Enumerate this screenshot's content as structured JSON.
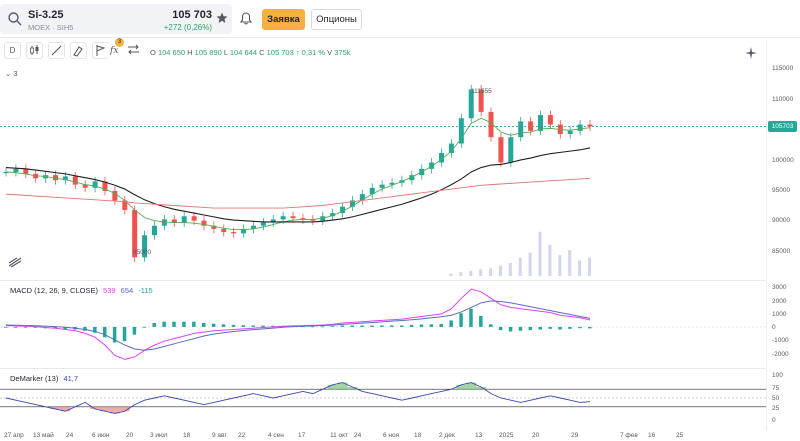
{
  "header": {
    "ticker": "Si-3.25",
    "exchange": "MOEX · SIH5",
    "price": "105 703",
    "change": "+272 (0,26%)",
    "order_label": "Заявка",
    "options_label": "Опционы",
    "icons": [
      "search-icon",
      "star-icon",
      "bell-icon"
    ]
  },
  "toolbar": {
    "period_label": "D",
    "indicator_badge": "3",
    "icons": [
      "candles-icon",
      "line-icon",
      "brush-icon",
      "fx-icon",
      "compare-icon"
    ]
  },
  "ohlc": {
    "o_label": "O",
    "o_value": "104 650",
    "h_label": "H",
    "h_value": "105 890",
    "l_label": "L",
    "l_value": "104 644",
    "c_label": "C",
    "c_value": "105 703",
    "change": "↑ 0,31 %",
    "vol_label": "V",
    "vol_value": "375k"
  },
  "collapse": {
    "label": "⌄ 3"
  },
  "price_axis": {
    "ticks": [
      "115000",
      "110000",
      "100000",
      "95000",
      "90000",
      "85000"
    ],
    "current": "105703",
    "high_label": "111555",
    "low_label": "85000"
  },
  "macd": {
    "label": "MACD (12, 26, 9, CLOSE)",
    "v1": "539",
    "v2": "654",
    "v3": "-115",
    "ticks": [
      "3000",
      "2000",
      "1000",
      "0",
      "-1000",
      "-2000"
    ]
  },
  "demarker": {
    "label": "DeMarker (13)",
    "value": "41,7",
    "ticks": [
      "100",
      "75",
      "50",
      "25",
      "0"
    ]
  },
  "time_axis": [
    "27 апр",
    "13 май",
    "24",
    "6 июн",
    "20",
    "3 июл",
    "18",
    "9 авг",
    "22",
    "4 сен",
    "17",
    "11 окт",
    "24",
    "6 ноя",
    "18",
    "2 дек",
    "13",
    "2025",
    "20",
    "29",
    "7 фев",
    "16",
    "25"
  ],
  "colors": {
    "up": "#26a69a",
    "down": "#ef5350",
    "sma_fast": "#4caf50",
    "sma_mid": "#1f1f1f",
    "sma_slow": "#e57373",
    "macd": "#e040fb",
    "signal": "#5c6bc0",
    "demarker": "#3949ab"
  },
  "chart_data": [
    {
      "type": "candlestick",
      "series": [
        {
          "name": "Si-3.25",
          "values": [
            98500,
            99000,
            98200,
            97500,
            98000,
            97200,
            97800,
            96500,
            96000,
            97000,
            95500,
            94000,
            92500,
            85000,
            88500,
            90000,
            91000,
            90500,
            91500,
            90800,
            90000,
            89500,
            89000,
            88800,
            89500,
            90000,
            90500,
            91000,
            91500,
            91200,
            91000,
            90800,
            91500,
            92000,
            93000,
            94000,
            95000,
            96000,
            96500,
            96800,
            97200,
            98000,
            99000,
            100000,
            101500,
            103000,
            107000,
            111555,
            108000,
            104000,
            100000,
            104000,
            106500,
            105000,
            107500,
            106000,
            104500,
            105000,
            106000,
            105703
          ]
        }
      ],
      "sma": [
        {
          "name": "SMA fast",
          "values": [
            98500,
            98400,
            98200,
            97900,
            97800,
            97500,
            97300,
            96900,
            96500,
            96300,
            95800,
            95100,
            94000,
            92500,
            91300,
            90800,
            90600,
            90500,
            90500,
            90400,
            90200,
            89900,
            89600,
            89400,
            89400,
            89500,
            89800,
            90200,
            90600,
            90900,
            91000,
            91000,
            91200,
            91600,
            92300,
            93100,
            94100,
            95000,
            95800,
            96400,
            97000,
            97700,
            98500,
            99400,
            100500,
            101800,
            103800,
            106200,
            107000,
            106300,
            104800,
            104300,
            104700,
            104800,
            105300,
            105400,
            105200,
            105100,
            105300,
            105500
          ]
        },
        {
          "name": "SMA mid",
          "values": [
            99200,
            99100,
            99000,
            98800,
            98600,
            98400,
            98200,
            97900,
            97600,
            97300,
            96900,
            96400,
            95800,
            94900,
            94100,
            93500,
            93000,
            92600,
            92300,
            92000,
            91700,
            91400,
            91100,
            90900,
            90800,
            90700,
            90600,
            90600,
            90600,
            90600,
            90600,
            90600,
            90700,
            90900,
            91100,
            91400,
            91800,
            92200,
            92600,
            93000,
            93400,
            93900,
            94400,
            95000,
            95700,
            96500,
            97400,
            98500,
            99200,
            99600,
            99700,
            100000,
            100400,
            100700,
            101100,
            101400,
            101600,
            101800,
            102000,
            102300
          ]
        },
        {
          "name": "SMA slow",
          "values": [
            95000,
            94900,
            94800,
            94700,
            94600,
            94500,
            94400,
            94300,
            94200,
            94100,
            94000,
            93900,
            93800,
            93600,
            93500,
            93400,
            93300,
            93200,
            93100,
            93000,
            92900,
            92800,
            92800,
            92800,
            92800,
            92800,
            92800,
            92800,
            92800,
            92900,
            93000,
            93100,
            93200,
            93400,
            93600,
            93800,
            94000,
            94200,
            94400,
            94600,
            94800,
            95000,
            95200,
            95400,
            95600,
            95800,
            96000,
            96200,
            96400,
            96500,
            96600,
            96700,
            96800,
            96900,
            97000,
            97100,
            97200,
            97300,
            97400,
            97500
          ]
        }
      ],
      "ylim": [
        83000,
        117000
      ]
    },
    {
      "type": "line",
      "title": "MACD (12, 26, 9, CLOSE)",
      "series": [
        {
          "name": "MACD",
          "values": [
            100,
            80,
            50,
            20,
            -50,
            -100,
            -200,
            -300,
            -500,
            -800,
            -1400,
            -2200,
            -2500,
            -2300,
            -1800,
            -1400,
            -1100,
            -900,
            -700,
            -500,
            -400,
            -300,
            -250,
            -200,
            -150,
            -100,
            -50,
            0,
            50,
            80,
            100,
            120,
            150,
            200,
            300,
            350,
            400,
            450,
            500,
            550,
            600,
            700,
            800,
            900,
            1000,
            1400,
            2200,
            2900,
            2700,
            2200,
            1700,
            1500,
            1400,
            1300,
            1200,
            1100,
            900,
            800,
            700,
            539
          ]
        },
        {
          "name": "Signal",
          "values": [
            150,
            130,
            110,
            90,
            60,
            20,
            -30,
            -100,
            -200,
            -350,
            -600,
            -1000,
            -1400,
            -1700,
            -1800,
            -1700,
            -1500,
            -1300,
            -1100,
            -900,
            -700,
            -550,
            -450,
            -350,
            -280,
            -210,
            -150,
            -90,
            -30,
            20,
            50,
            80,
            110,
            140,
            190,
            240,
            290,
            340,
            390,
            440,
            490,
            550,
            620,
            700,
            780,
            900,
            1150,
            1500,
            1850,
            2000,
            1950,
            1850,
            1700,
            1550,
            1400,
            1250,
            1100,
            950,
            800,
            654
          ]
        }
      ],
      "ylim": [
        -2700,
        3300
      ]
    },
    {
      "type": "line",
      "title": "DeMarker (13)",
      "series": [
        {
          "name": "DeMarker",
          "values": [
            50,
            45,
            40,
            35,
            30,
            25,
            20,
            30,
            40,
            25,
            20,
            15,
            20,
            35,
            45,
            50,
            55,
            50,
            45,
            40,
            35,
            40,
            45,
            50,
            55,
            60,
            55,
            50,
            55,
            60,
            65,
            60,
            70,
            80,
            85,
            75,
            65,
            60,
            55,
            50,
            45,
            50,
            55,
            60,
            65,
            70,
            80,
            85,
            75,
            60,
            50,
            45,
            40,
            45,
            50,
            55,
            50,
            45,
            40,
            41.7
          ]
        }
      ],
      "thresholds": [
        70,
        30
      ],
      "ylim": [
        0,
        100
      ]
    }
  ]
}
